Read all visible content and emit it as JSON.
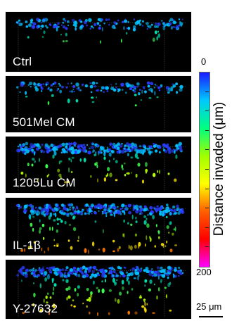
{
  "panels": [
    {
      "label": "Ctrl",
      "depth": 0.18,
      "density": 0.55
    },
    {
      "label": "501Mel CM",
      "depth": 0.2,
      "density": 0.45
    },
    {
      "label": "1205Lu CM",
      "depth": 0.42,
      "density": 0.9
    },
    {
      "label": "IL-1β",
      "depth": 0.55,
      "density": 0.95
    },
    {
      "label": "Y-27632",
      "depth": 0.5,
      "density": 0.9
    }
  ],
  "colorbar": {
    "title": "Distance invaded (μm)",
    "min_label": "0",
    "max_label": "200",
    "colors": [
      "#1a1aff",
      "#00c8ff",
      "#00ff80",
      "#a0ff00",
      "#ffff00",
      "#ff6000",
      "#ff0000",
      "#ff00ff"
    ]
  },
  "scale_bar": {
    "label": "25 μm"
  }
}
